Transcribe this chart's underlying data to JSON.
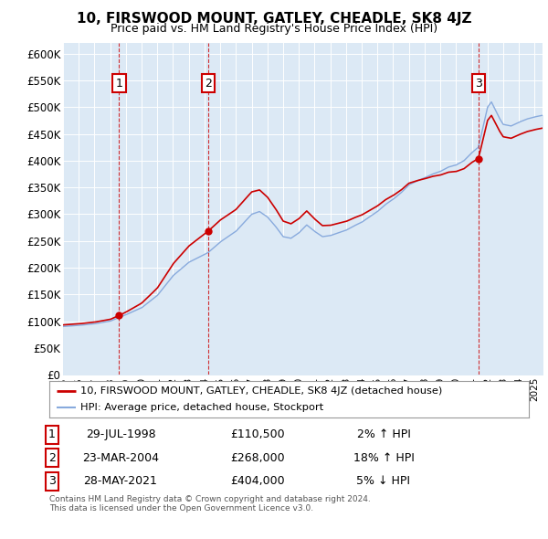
{
  "title": "10, FIRSWOOD MOUNT, GATLEY, CHEADLE, SK8 4JZ",
  "subtitle": "Price paid vs. HM Land Registry's House Price Index (HPI)",
  "background_color": "#ffffff",
  "plot_bg_color": "#dce9f5",
  "grid_color": "#ffffff",
  "sale_line_color": "#cc0000",
  "hpi_line_color": "#88aadd",
  "ylim": [
    0,
    620000
  ],
  "yticks": [
    0,
    50000,
    100000,
    150000,
    200000,
    250000,
    300000,
    350000,
    400000,
    450000,
    500000,
    550000,
    600000
  ],
  "ytick_labels": [
    "£0",
    "£50K",
    "£100K",
    "£150K",
    "£200K",
    "£250K",
    "£300K",
    "£350K",
    "£400K",
    "£450K",
    "£500K",
    "£550K",
    "£600K"
  ],
  "sale_points": [
    {
      "date_num": 1998.57,
      "price": 110500,
      "label": "1"
    },
    {
      "date_num": 2004.22,
      "price": 268000,
      "label": "2"
    },
    {
      "date_num": 2021.41,
      "price": 404000,
      "label": "3"
    }
  ],
  "legend_sale_label": "10, FIRSWOOD MOUNT, GATLEY, CHEADLE, SK8 4JZ (detached house)",
  "legend_hpi_label": "HPI: Average price, detached house, Stockport",
  "table_rows": [
    {
      "num": "1",
      "date": "29-JUL-1998",
      "price": "£110,500",
      "change": "2% ↑ HPI"
    },
    {
      "num": "2",
      "date": "23-MAR-2004",
      "price": "£268,000",
      "change": "18% ↑ HPI"
    },
    {
      "num": "3",
      "date": "28-MAY-2021",
      "price": "£404,000",
      "change": "5% ↓ HPI"
    }
  ],
  "footer": "Contains HM Land Registry data © Crown copyright and database right 2024.\nThis data is licensed under the Open Government Licence v3.0.",
  "xmin": 1995,
  "xmax": 2025.5
}
